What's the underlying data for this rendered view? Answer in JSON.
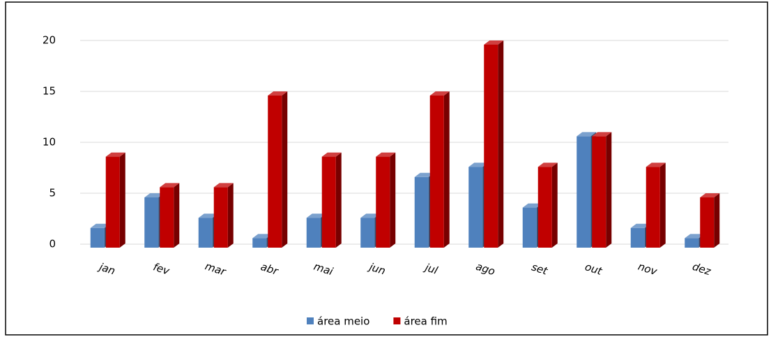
{
  "chart_data": {
    "type": "bar3d",
    "categories": [
      "jan",
      "fev",
      "mar",
      "abr",
      "mai",
      "jun",
      "jul",
      "ago",
      "set",
      "out",
      "nov",
      "dez"
    ],
    "series": [
      {
        "name": "área meio",
        "color": "#4f81bd",
        "values": [
          2,
          5,
          3,
          1,
          3,
          3,
          7,
          8,
          4,
          11,
          2,
          1
        ]
      },
      {
        "name": "área fim",
        "color": "#c00000",
        "values": [
          9,
          6,
          6,
          15,
          9,
          9,
          15,
          20,
          8,
          11,
          8,
          5
        ]
      }
    ],
    "ylim": [
      0,
      20
    ],
    "yticks": [
      0,
      5,
      10,
      15,
      20
    ],
    "grid": true,
    "legend": "bottom"
  }
}
